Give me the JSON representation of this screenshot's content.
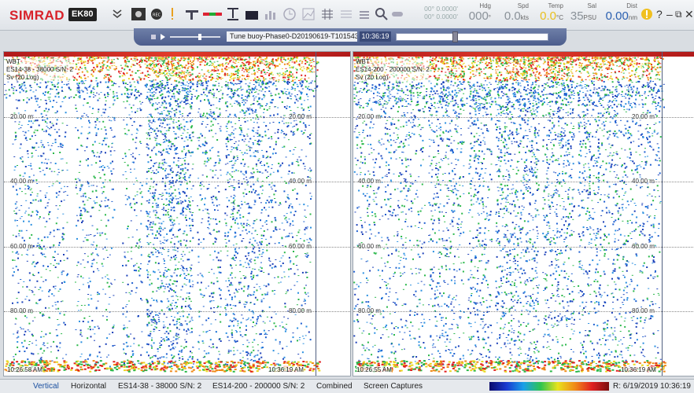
{
  "app": {
    "brand": "SIMRAD",
    "model": "EK80"
  },
  "toolbar": {
    "icons": [
      "chevron-down-icon",
      "camera-icon",
      "record-icon",
      "alert-icon",
      "ping-icon",
      "range-icon",
      "bottom-icon",
      "bar-icon",
      "histogram-icon",
      "clock-icon",
      "graph-icon",
      "grid-icon",
      "grid2-icon",
      "layers-icon",
      "zoom-icon",
      "toggle-icon"
    ]
  },
  "readouts": {
    "position": {
      "lat": "00° 0.0000'",
      "lon": "00° 0.0000'"
    },
    "hdg": {
      "label": "Hdg",
      "value": "000",
      "unit": "°"
    },
    "spd": {
      "label": "Spd",
      "value": "0.0",
      "unit": "kts"
    },
    "temp": {
      "label": "Temp",
      "value": "0.0",
      "unit": "°C"
    },
    "sal": {
      "label": "Sal",
      "value": "35",
      "unit": "PSU"
    },
    "dist": {
      "label": "Dist",
      "value": "0.00",
      "unit": "nm"
    }
  },
  "window": {
    "help": "?",
    "minimize": "–",
    "restore": "⧉",
    "close": "✕"
  },
  "playback": {
    "file": "Tune buoy-Phase0-D20190619-T101543-0",
    "time": "10:36:19",
    "progress": 0.38
  },
  "panels": [
    {
      "id": "left",
      "lines": [
        "WBT",
        "ES14-38 - 38000 S/N: 2",
        "Sv (20 Log)"
      ],
      "depths": [
        "20.00 m",
        "40.00 m",
        "60.00 m",
        "80.00 m"
      ],
      "time_start": "10:26:58 AM",
      "time_end": "10:36:19 AM"
    },
    {
      "id": "right",
      "lines": [
        "WBT",
        "ES14-200 - 200000 S/N: 2",
        "Sv (20 Log)"
      ],
      "depths": [
        "20.00 m",
        "40.00 m",
        "60.00 m",
        "80.00 m"
      ],
      "time_start": "10:26:55 AM",
      "time_end": "10:36:19 AM"
    }
  ],
  "status": {
    "tabs": [
      "Vertical",
      "Horizontal",
      "ES14-38 - 38000 S/N: 2",
      "ES14-200 - 200000 S/N: 2",
      "Combined",
      "Screen Captures"
    ],
    "replay": "R: 6/19/2019  10:36:19"
  },
  "colors": {
    "accent": "#d8222a",
    "playbar": "#5a6b98"
  }
}
